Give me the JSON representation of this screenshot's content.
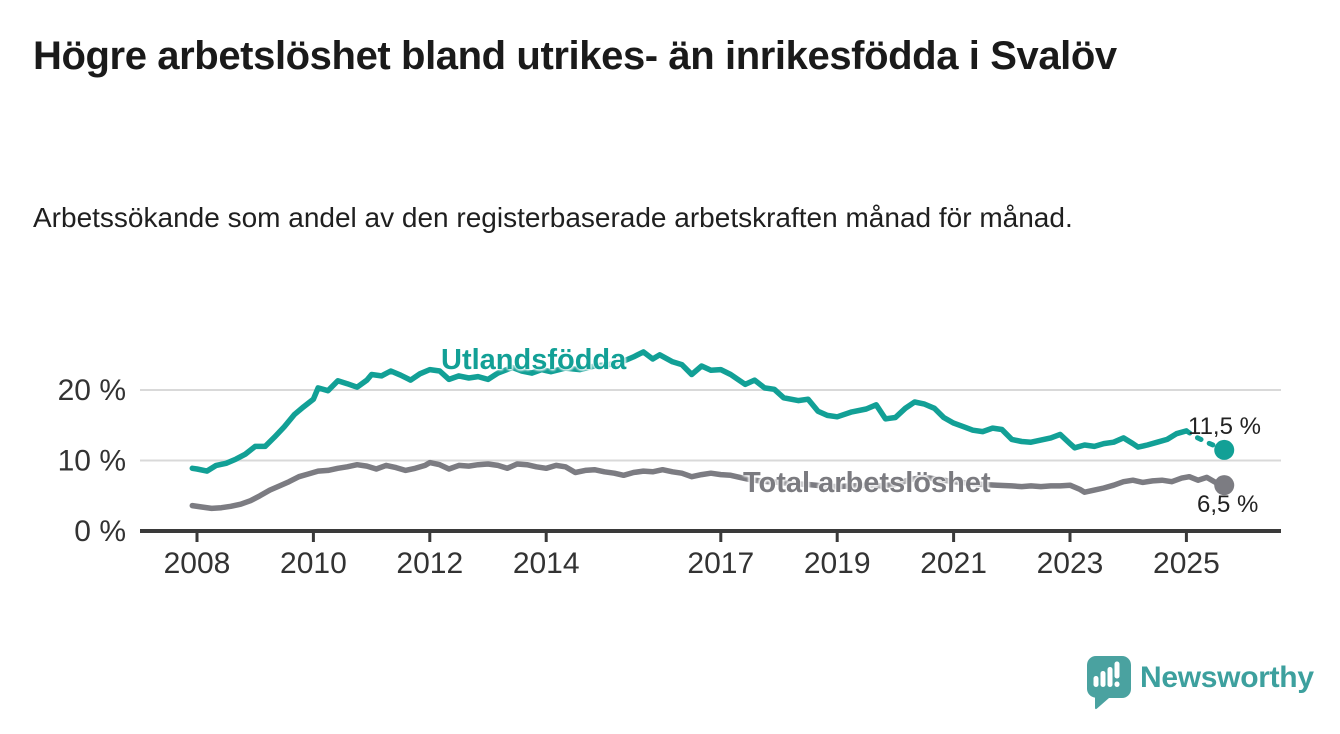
{
  "header": {
    "title": "Högre arbetslöshet bland utrikes- än inrikesfödda i Svalöv",
    "subtitle": "Arbetssökande som andel av den registerbaserade arbetskraften månad för månad."
  },
  "chart_data": {
    "type": "line",
    "title": "",
    "xlabel": "",
    "ylabel": "",
    "x_range": [
      2007.9,
      2026.3
    ],
    "ylim": [
      0,
      26.5
    ],
    "grid": "horizontal",
    "x_ticks": [
      {
        "value": 2008,
        "label": "2008"
      },
      {
        "value": 2010,
        "label": "2010"
      },
      {
        "value": 2012,
        "label": "2012"
      },
      {
        "value": 2014,
        "label": "2014"
      },
      {
        "value": 2017,
        "label": "2017"
      },
      {
        "value": 2019,
        "label": "2019"
      },
      {
        "value": 2021,
        "label": "2021"
      },
      {
        "value": 2023,
        "label": "2023"
      },
      {
        "value": 2025,
        "label": "2025"
      }
    ],
    "y_ticks": [
      {
        "value": 0,
        "label": "0 %"
      },
      {
        "value": 10,
        "label": "10 %"
      },
      {
        "value": 20,
        "label": "20 %"
      }
    ],
    "colors": {
      "grid": "#d9d9d9",
      "axis": "#3a3a3a",
      "tick_text": "#333333"
    },
    "series": [
      {
        "name": "Utlandsfödda",
        "color": "#12a096",
        "end_label": "11,5 %",
        "end_value": 11.5,
        "end_label_placement": "above",
        "dashed_from": 2025.0,
        "points": [
          [
            2007.92,
            8.9
          ],
          [
            2008.0,
            8.8
          ],
          [
            2008.17,
            8.5
          ],
          [
            2008.33,
            9.3
          ],
          [
            2008.5,
            9.6
          ],
          [
            2008.67,
            10.2
          ],
          [
            2008.83,
            10.9
          ],
          [
            2009.0,
            12.0
          ],
          [
            2009.17,
            12.0
          ],
          [
            2009.33,
            13.3
          ],
          [
            2009.5,
            14.8
          ],
          [
            2009.67,
            16.5
          ],
          [
            2009.83,
            17.6
          ],
          [
            2010.0,
            18.7
          ],
          [
            2010.08,
            20.3
          ],
          [
            2010.25,
            19.9
          ],
          [
            2010.42,
            21.3
          ],
          [
            2010.58,
            20.9
          ],
          [
            2010.75,
            20.4
          ],
          [
            2010.92,
            21.4
          ],
          [
            2011.0,
            22.2
          ],
          [
            2011.17,
            22.0
          ],
          [
            2011.33,
            22.7
          ],
          [
            2011.5,
            22.1
          ],
          [
            2011.67,
            21.4
          ],
          [
            2011.83,
            22.3
          ],
          [
            2012.0,
            22.9
          ],
          [
            2012.17,
            22.7
          ],
          [
            2012.33,
            21.5
          ],
          [
            2012.5,
            22.0
          ],
          [
            2012.67,
            21.7
          ],
          [
            2012.83,
            21.9
          ],
          [
            2013.0,
            21.5
          ],
          [
            2013.17,
            22.4
          ],
          [
            2013.42,
            23.2
          ],
          [
            2013.58,
            22.7
          ],
          [
            2013.75,
            22.4
          ],
          [
            2013.92,
            22.9
          ],
          [
            2014.08,
            22.6
          ],
          [
            2014.33,
            23.1
          ],
          [
            2014.58,
            22.9
          ],
          [
            2014.83,
            23.4
          ],
          [
            2015.08,
            23.6
          ],
          [
            2015.33,
            24.1
          ],
          [
            2015.5,
            24.7
          ],
          [
            2015.67,
            25.4
          ],
          [
            2015.83,
            24.4
          ],
          [
            2015.95,
            25.0
          ],
          [
            2016.17,
            24.0
          ],
          [
            2016.33,
            23.6
          ],
          [
            2016.5,
            22.2
          ],
          [
            2016.67,
            23.4
          ],
          [
            2016.83,
            22.8
          ],
          [
            2017.0,
            22.9
          ],
          [
            2017.17,
            22.2
          ],
          [
            2017.42,
            20.8
          ],
          [
            2017.58,
            21.4
          ],
          [
            2017.75,
            20.3
          ],
          [
            2017.92,
            20.1
          ],
          [
            2018.08,
            18.9
          ],
          [
            2018.33,
            18.5
          ],
          [
            2018.5,
            18.7
          ],
          [
            2018.67,
            17.0
          ],
          [
            2018.83,
            16.4
          ],
          [
            2019.0,
            16.2
          ],
          [
            2019.25,
            16.9
          ],
          [
            2019.5,
            17.3
          ],
          [
            2019.67,
            17.9
          ],
          [
            2019.83,
            15.9
          ],
          [
            2020.0,
            16.1
          ],
          [
            2020.17,
            17.4
          ],
          [
            2020.33,
            18.3
          ],
          [
            2020.5,
            18.0
          ],
          [
            2020.67,
            17.4
          ],
          [
            2020.83,
            16.1
          ],
          [
            2021.0,
            15.3
          ],
          [
            2021.17,
            14.8
          ],
          [
            2021.33,
            14.3
          ],
          [
            2021.5,
            14.1
          ],
          [
            2021.67,
            14.6
          ],
          [
            2021.83,
            14.4
          ],
          [
            2022.0,
            13.0
          ],
          [
            2022.17,
            12.7
          ],
          [
            2022.33,
            12.6
          ],
          [
            2022.5,
            12.9
          ],
          [
            2022.67,
            13.2
          ],
          [
            2022.83,
            13.7
          ],
          [
            2023.0,
            12.4
          ],
          [
            2023.08,
            11.8
          ],
          [
            2023.25,
            12.2
          ],
          [
            2023.42,
            12.0
          ],
          [
            2023.58,
            12.4
          ],
          [
            2023.75,
            12.6
          ],
          [
            2023.92,
            13.2
          ],
          [
            2024.08,
            12.4
          ],
          [
            2024.17,
            11.9
          ],
          [
            2024.33,
            12.2
          ],
          [
            2024.5,
            12.6
          ],
          [
            2024.67,
            13.0
          ],
          [
            2024.83,
            13.8
          ],
          [
            2025.0,
            14.2
          ],
          [
            2025.17,
            13.3
          ],
          [
            2025.4,
            12.4
          ],
          [
            2025.65,
            11.5
          ]
        ]
      },
      {
        "name": "Total arbetslöshet",
        "color": "#7c7c82",
        "end_label": "6,5 %",
        "end_value": 6.5,
        "end_label_placement": "below",
        "points": [
          [
            2007.92,
            3.6
          ],
          [
            2008.08,
            3.4
          ],
          [
            2008.25,
            3.2
          ],
          [
            2008.42,
            3.3
          ],
          [
            2008.58,
            3.5
          ],
          [
            2008.75,
            3.8
          ],
          [
            2008.92,
            4.3
          ],
          [
            2009.08,
            5.0
          ],
          [
            2009.25,
            5.8
          ],
          [
            2009.42,
            6.4
          ],
          [
            2009.58,
            7.0
          ],
          [
            2009.75,
            7.7
          ],
          [
            2009.92,
            8.1
          ],
          [
            2010.08,
            8.5
          ],
          [
            2010.25,
            8.6
          ],
          [
            2010.42,
            8.9
          ],
          [
            2010.58,
            9.1
          ],
          [
            2010.75,
            9.4
          ],
          [
            2010.92,
            9.2
          ],
          [
            2011.08,
            8.8
          ],
          [
            2011.25,
            9.3
          ],
          [
            2011.42,
            9.0
          ],
          [
            2011.58,
            8.6
          ],
          [
            2011.75,
            8.9
          ],
          [
            2011.92,
            9.3
          ],
          [
            2012.0,
            9.7
          ],
          [
            2012.17,
            9.4
          ],
          [
            2012.33,
            8.8
          ],
          [
            2012.5,
            9.3
          ],
          [
            2012.67,
            9.2
          ],
          [
            2012.83,
            9.4
          ],
          [
            2013.0,
            9.5
          ],
          [
            2013.17,
            9.3
          ],
          [
            2013.33,
            8.9
          ],
          [
            2013.5,
            9.5
          ],
          [
            2013.67,
            9.4
          ],
          [
            2013.83,
            9.1
          ],
          [
            2014.0,
            8.9
          ],
          [
            2014.17,
            9.3
          ],
          [
            2014.33,
            9.1
          ],
          [
            2014.5,
            8.3
          ],
          [
            2014.67,
            8.6
          ],
          [
            2014.83,
            8.7
          ],
          [
            2015.0,
            8.4
          ],
          [
            2015.17,
            8.2
          ],
          [
            2015.33,
            7.9
          ],
          [
            2015.5,
            8.3
          ],
          [
            2015.67,
            8.5
          ],
          [
            2015.83,
            8.4
          ],
          [
            2016.0,
            8.7
          ],
          [
            2016.17,
            8.4
          ],
          [
            2016.33,
            8.2
          ],
          [
            2016.5,
            7.7
          ],
          [
            2016.67,
            8.0
          ],
          [
            2016.83,
            8.2
          ],
          [
            2017.0,
            8.0
          ],
          [
            2017.17,
            7.9
          ],
          [
            2017.33,
            7.6
          ],
          [
            2017.5,
            7.3
          ],
          [
            2017.67,
            7.1
          ],
          [
            2017.83,
            7.0
          ],
          [
            2018.0,
            6.9
          ],
          [
            2018.25,
            6.7
          ],
          [
            2018.5,
            6.6
          ],
          [
            2018.75,
            6.4
          ],
          [
            2019.0,
            6.3
          ],
          [
            2019.25,
            6.4
          ],
          [
            2019.5,
            6.5
          ],
          [
            2019.75,
            6.4
          ],
          [
            2020.0,
            6.6
          ],
          [
            2020.25,
            7.3
          ],
          [
            2020.5,
            7.6
          ],
          [
            2020.75,
            7.3
          ],
          [
            2021.0,
            7.0
          ],
          [
            2021.25,
            6.8
          ],
          [
            2021.5,
            6.6
          ],
          [
            2021.75,
            6.5
          ],
          [
            2022.0,
            6.4
          ],
          [
            2022.17,
            6.3
          ],
          [
            2022.33,
            6.4
          ],
          [
            2022.5,
            6.3
          ],
          [
            2022.67,
            6.4
          ],
          [
            2022.83,
            6.4
          ],
          [
            2023.0,
            6.5
          ],
          [
            2023.17,
            5.9
          ],
          [
            2023.25,
            5.5
          ],
          [
            2023.42,
            5.8
          ],
          [
            2023.58,
            6.1
          ],
          [
            2023.75,
            6.5
          ],
          [
            2023.92,
            7.0
          ],
          [
            2024.08,
            7.2
          ],
          [
            2024.25,
            6.9
          ],
          [
            2024.42,
            7.1
          ],
          [
            2024.58,
            7.2
          ],
          [
            2024.75,
            7.0
          ],
          [
            2024.92,
            7.5
          ],
          [
            2025.05,
            7.7
          ],
          [
            2025.2,
            7.2
          ],
          [
            2025.35,
            7.6
          ],
          [
            2025.5,
            6.9
          ],
          [
            2025.65,
            6.5
          ]
        ]
      }
    ]
  },
  "footer": {
    "brand": "Newsworthy",
    "logo_color": "#4aa2a0"
  }
}
